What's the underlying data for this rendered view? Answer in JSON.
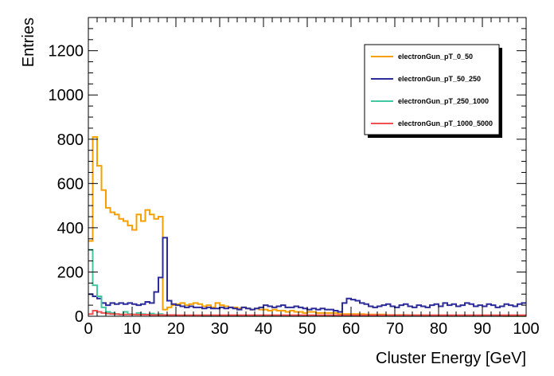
{
  "chart_data": {
    "type": "line",
    "xlabel": "Cluster Energy [GeV]",
    "ylabel": "Entries",
    "xlim": [
      0,
      100
    ],
    "ylim": [
      0,
      1350
    ],
    "x_ticks": [
      0,
      10,
      20,
      30,
      40,
      50,
      60,
      70,
      80,
      90,
      100
    ],
    "y_ticks": [
      0,
      200,
      400,
      600,
      800,
      1000,
      1200
    ],
    "grid": false,
    "legend_position": "top-right",
    "bin_width": 1,
    "series": [
      {
        "name": "electronGun_pT_0_50",
        "color": "#f5a000",
        "values": [
          340,
          810,
          680,
          570,
          490,
          470,
          460,
          440,
          430,
          410,
          390,
          460,
          430,
          480,
          460,
          440,
          450,
          30,
          40,
          50,
          55,
          60,
          50,
          55,
          60,
          55,
          45,
          50,
          40,
          60,
          50,
          45,
          40,
          40,
          35,
          40,
          35,
          30,
          35,
          30,
          30,
          25,
          30,
          25,
          25,
          20,
          25,
          20,
          20,
          15,
          20,
          20,
          15,
          15,
          15,
          15,
          15,
          10,
          10,
          10,
          10,
          10,
          10,
          8,
          8,
          8,
          8,
          8,
          6,
          6,
          6,
          6,
          6,
          5,
          5,
          5,
          5,
          4,
          4,
          4,
          4,
          4,
          3,
          3,
          3,
          3,
          3,
          3,
          2,
          2,
          2,
          2,
          2,
          2,
          2,
          1,
          1,
          1,
          1,
          1
        ]
      },
      {
        "name": "electronGun_pT_50_250",
        "color": "#2b2b9a",
        "values": [
          100,
          90,
          80,
          60,
          50,
          60,
          55,
          60,
          55,
          60,
          55,
          50,
          55,
          65,
          60,
          110,
          175,
          355,
          70,
          55,
          50,
          45,
          40,
          45,
          40,
          40,
          35,
          40,
          35,
          35,
          40,
          35,
          40,
          35,
          30,
          40,
          35,
          30,
          35,
          40,
          50,
          45,
          40,
          45,
          50,
          40,
          40,
          45,
          40,
          35,
          30,
          35,
          30,
          35,
          30,
          30,
          25,
          20,
          60,
          80,
          75,
          70,
          60,
          55,
          45,
          40,
          45,
          50,
          55,
          45,
          40,
          50,
          55,
          45,
          40,
          50,
          45,
          40,
          50,
          55,
          45,
          60,
          50,
          55,
          45,
          50,
          60,
          55,
          45,
          50,
          45,
          55,
          50,
          40,
          45,
          55,
          50,
          45,
          55,
          60
        ]
      },
      {
        "name": "electronGun_pT_250_1000",
        "color": "#40c8a0",
        "values": [
          300,
          140,
          90,
          40,
          20,
          15,
          10,
          8,
          20,
          10,
          8,
          15,
          10,
          8,
          12,
          8,
          10,
          5,
          4,
          3,
          3,
          2,
          2,
          2,
          2,
          2,
          1,
          1,
          1,
          1,
          1,
          1,
          1,
          1,
          1,
          1,
          1,
          1,
          1,
          1,
          1,
          1,
          1,
          1,
          1,
          1,
          1,
          1,
          1,
          1,
          1,
          1,
          1,
          1,
          1,
          1,
          1,
          1,
          1,
          1,
          1,
          1,
          1,
          1,
          1,
          1,
          1,
          1,
          1,
          1,
          1,
          1,
          1,
          1,
          1,
          1,
          1,
          1,
          1,
          1,
          1,
          1,
          1,
          1,
          1,
          1,
          1,
          1,
          1,
          1,
          1,
          1,
          1,
          1,
          1,
          1,
          1,
          1,
          1,
          1
        ]
      },
      {
        "name": "electronGun_pT_1000_5000",
        "color": "#f05050",
        "values": [
          10,
          25,
          20,
          15,
          12,
          10,
          10,
          8,
          8,
          8,
          8,
          7,
          7,
          7,
          6,
          6,
          6,
          6,
          6,
          6,
          5,
          5,
          5,
          5,
          5,
          5,
          5,
          5,
          5,
          5,
          5,
          5,
          5,
          5,
          5,
          5,
          5,
          5,
          5,
          5,
          5,
          5,
          5,
          5,
          5,
          5,
          5,
          5,
          5,
          5,
          5,
          5,
          5,
          5,
          5,
          5,
          5,
          5,
          5,
          5,
          5,
          5,
          5,
          5,
          5,
          5,
          5,
          5,
          5,
          5,
          5,
          5,
          5,
          5,
          5,
          5,
          5,
          5,
          5,
          5,
          5,
          5,
          5,
          5,
          5,
          5,
          5,
          5,
          5,
          5,
          5,
          5,
          5,
          5,
          5,
          5,
          5,
          5,
          5,
          5
        ]
      }
    ]
  }
}
